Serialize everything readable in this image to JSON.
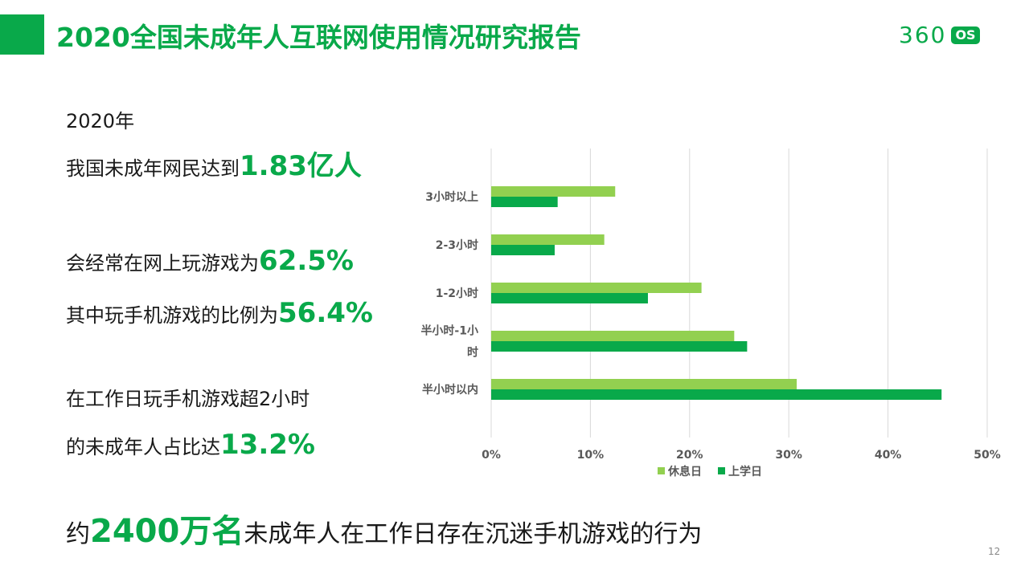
{
  "header": {
    "title": "2020全国未成年人互联网使用情况研究报告",
    "logo_number": "360",
    "logo_badge": "OS"
  },
  "colors": {
    "accent": "#09a94a",
    "holiday": "#92d050",
    "school": "#09a94a"
  },
  "stats": {
    "year": "2020年",
    "line1_text": "我国未成年网民达到",
    "line1_value": "1.83亿人",
    "line2_text": "会经常在网上玩游戏为",
    "line2_value": "62.5%",
    "line3_text": "其中玩手机游戏的比例为",
    "line3_value": "56.4%",
    "line4_text": "在工作日玩手机游戏超2小时",
    "line5_text": "的未成年人占比达",
    "line5_value": "13.2%"
  },
  "bottom": {
    "prefix": "约",
    "value": "2400万名",
    "suffix": "未成年人在工作日存在沉迷手机游戏的行为"
  },
  "page_number": "12",
  "chart_data": {
    "type": "bar",
    "orientation": "horizontal",
    "categories": [
      "3小时以上",
      "2-3小时",
      "1-2小时",
      "半小时-1小时",
      "半小时以内"
    ],
    "category_lines": [
      [
        "3小时以上"
      ],
      [
        "2-3小时"
      ],
      [
        "1-2小时"
      ],
      [
        "半小时-1小",
        "时"
      ],
      [
        "半小时以内"
      ]
    ],
    "series": [
      {
        "name": "休息日",
        "color": "#92d050",
        "values": [
          12.5,
          11.4,
          21.2,
          24.5,
          30.8
        ]
      },
      {
        "name": "上学日",
        "color": "#09a94a",
        "values": [
          6.7,
          6.4,
          15.8,
          25.8,
          45.4
        ]
      }
    ],
    "xlim": [
      0,
      50
    ],
    "xticks": [
      "0%",
      "10%",
      "20%",
      "30%",
      "40%",
      "50%"
    ],
    "grid": true,
    "legend_position": "bottom"
  }
}
